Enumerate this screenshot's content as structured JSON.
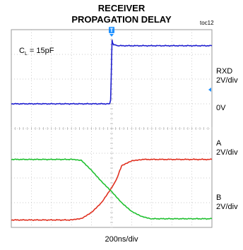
{
  "header": {
    "title_line1": "RECEIVER",
    "title_line2": "PROPAGATION DELAY",
    "figure_id": "toc12"
  },
  "annotation": {
    "c_prefix": "C",
    "c_sub": "L",
    "c_value": " = 15pF"
  },
  "trigger_marker": "T",
  "channel_labels": {
    "rxd_name": "RXD",
    "rxd_scale": "2V/div",
    "zero_ref": "0V",
    "a_name": "A",
    "a_scale": "2V/div",
    "b_name": "B",
    "b_scale": "2V/div"
  },
  "colors": {
    "rxd": "#2020d0",
    "a": "#e03020",
    "b": "#20c030",
    "grid": "#bbbbbb",
    "trigger": "#1e90ff"
  },
  "chart_data": {
    "type": "line",
    "title": "RECEIVER PROPAGATION DELAY",
    "xlabel": "200ns/div",
    "x_units": "ns",
    "xlim": [
      -1000,
      1000
    ],
    "grid": true,
    "divisions": {
      "x": 10,
      "y": 8
    },
    "series": [
      {
        "name": "RXD",
        "scale": "2V/div",
        "x": [
          -1000,
          -20,
          -10,
          -5,
          0,
          5,
          10,
          20,
          60,
          1000
        ],
        "values": [
          0,
          0,
          0.3,
          1.8,
          3.7,
          5.2,
          4.9,
          4.8,
          4.7,
          4.7
        ]
      },
      {
        "name": "A",
        "scale": "2V/div",
        "x": [
          -1000,
          -400,
          -300,
          -200,
          -100,
          0,
          50,
          100,
          200,
          300,
          1000
        ],
        "values": [
          -9.4,
          -9.4,
          -9.3,
          -8.8,
          -8.0,
          -6.8,
          -6.1,
          -5.0,
          -4.6,
          -4.5,
          -4.5
        ],
        "note_zero": "vertical position arbitrary"
      },
      {
        "name": "B",
        "scale": "2V/div",
        "x": [
          -1000,
          -400,
          -300,
          -200,
          -100,
          0,
          100,
          200,
          300,
          400,
          1000
        ],
        "values": [
          -4.5,
          -4.5,
          -4.6,
          -5.4,
          -6.3,
          -7.1,
          -8.0,
          -8.7,
          -9.1,
          -9.3,
          -9.3
        ]
      }
    ]
  }
}
